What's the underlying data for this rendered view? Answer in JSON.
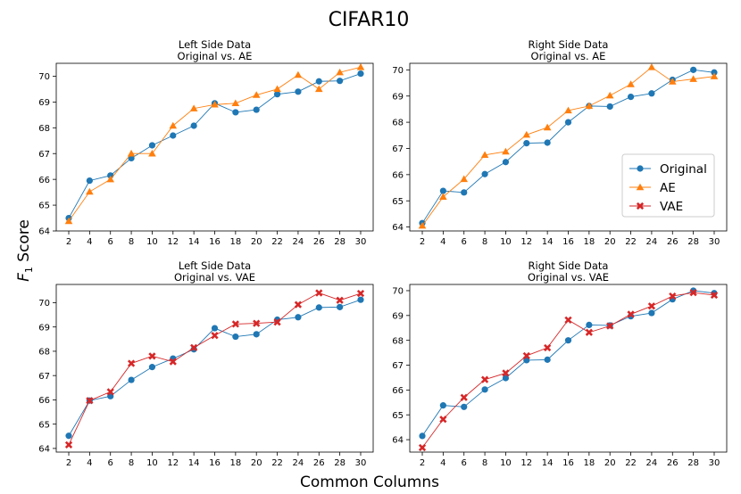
{
  "figure": {
    "title": "CIFAR10",
    "ylabel": "F",
    "ylabel_sub": "1",
    "ylabel_rest": " Score",
    "xlabel": "Common Columns"
  },
  "colors": {
    "original": "#1f77b4",
    "ae": "#ff7f0e",
    "vae": "#d62728"
  },
  "legend": {
    "location": "center-right of top-right panel",
    "entries": [
      "Original",
      "AE",
      "VAE"
    ]
  },
  "chart_data": [
    {
      "type": "line",
      "title": "Left Side Data",
      "subtitle": "Original vs. AE",
      "xlabel": "",
      "ylabel": "",
      "ylim": [
        64,
        70.5
      ],
      "yticks": [
        64,
        65,
        66,
        67,
        68,
        69,
        70
      ],
      "x": [
        2,
        4,
        6,
        8,
        10,
        12,
        14,
        16,
        18,
        20,
        22,
        24,
        26,
        28,
        30
      ],
      "series": [
        {
          "name": "Original",
          "marker": "circle",
          "values": [
            64.5,
            65.95,
            66.15,
            66.82,
            67.32,
            67.7,
            68.08,
            68.95,
            68.6,
            68.7,
            69.3,
            69.4,
            69.8,
            69.82,
            70.1
          ]
        },
        {
          "name": "AE",
          "marker": "triangle",
          "values": [
            64.38,
            65.52,
            66.0,
            67.0,
            67.0,
            68.08,
            68.75,
            68.9,
            68.95,
            69.27,
            69.5,
            70.05,
            69.5,
            70.15,
            70.35
          ]
        }
      ]
    },
    {
      "type": "line",
      "title": "Right Side Data",
      "subtitle": "Original vs. AE",
      "xlabel": "",
      "ylabel": "",
      "ylim": [
        63.85,
        70.25
      ],
      "yticks": [
        64,
        65,
        66,
        67,
        68,
        69,
        70
      ],
      "x": [
        2,
        4,
        6,
        8,
        10,
        12,
        14,
        16,
        18,
        20,
        22,
        24,
        26,
        28,
        30
      ],
      "series": [
        {
          "name": "Original",
          "marker": "circle",
          "values": [
            64.15,
            65.38,
            65.32,
            66.02,
            66.48,
            67.2,
            67.22,
            68.0,
            68.62,
            68.6,
            68.97,
            69.1,
            69.62,
            70.0,
            69.9
          ]
        },
        {
          "name": "AE",
          "marker": "triangle",
          "values": [
            64.05,
            65.15,
            65.83,
            66.75,
            66.88,
            67.52,
            67.8,
            68.45,
            68.62,
            69.02,
            69.45,
            70.1,
            69.55,
            69.65,
            69.75
          ]
        }
      ]
    },
    {
      "type": "line",
      "title": "Left Side Data",
      "subtitle": "Original vs. VAE",
      "xlabel": "",
      "ylabel": "",
      "ylim": [
        63.85,
        70.75
      ],
      "yticks": [
        64,
        65,
        66,
        67,
        68,
        69,
        70
      ],
      "x": [
        2,
        4,
        6,
        8,
        10,
        12,
        14,
        16,
        18,
        20,
        22,
        24,
        26,
        28,
        30
      ],
      "series": [
        {
          "name": "Original",
          "marker": "circle",
          "values": [
            64.52,
            65.97,
            66.15,
            66.82,
            67.35,
            67.7,
            68.08,
            68.95,
            68.6,
            68.7,
            69.3,
            69.4,
            69.8,
            69.82,
            70.12
          ]
        },
        {
          "name": "VAE",
          "marker": "x",
          "values": [
            64.15,
            65.97,
            66.33,
            67.5,
            67.8,
            67.57,
            68.15,
            68.65,
            69.12,
            69.15,
            69.2,
            69.92,
            70.4,
            70.1,
            70.38
          ]
        }
      ]
    },
    {
      "type": "line",
      "title": "Right Side Data",
      "subtitle": "Original vs. VAE",
      "xlabel": "",
      "ylabel": "",
      "ylim": [
        63.5,
        70.25
      ],
      "yticks": [
        64,
        65,
        66,
        67,
        68,
        69,
        70
      ],
      "x": [
        2,
        4,
        6,
        8,
        10,
        12,
        14,
        16,
        18,
        20,
        22,
        24,
        26,
        28,
        30
      ],
      "series": [
        {
          "name": "Original",
          "marker": "circle",
          "values": [
            64.15,
            65.38,
            65.32,
            66.02,
            66.48,
            67.2,
            67.22,
            68.0,
            68.62,
            68.6,
            68.97,
            69.1,
            69.65,
            70.0,
            69.9
          ]
        },
        {
          "name": "VAE",
          "marker": "x",
          "values": [
            63.68,
            64.82,
            65.7,
            66.42,
            66.68,
            67.38,
            67.7,
            68.82,
            68.32,
            68.58,
            69.05,
            69.38,
            69.78,
            69.92,
            69.82
          ]
        }
      ]
    }
  ]
}
